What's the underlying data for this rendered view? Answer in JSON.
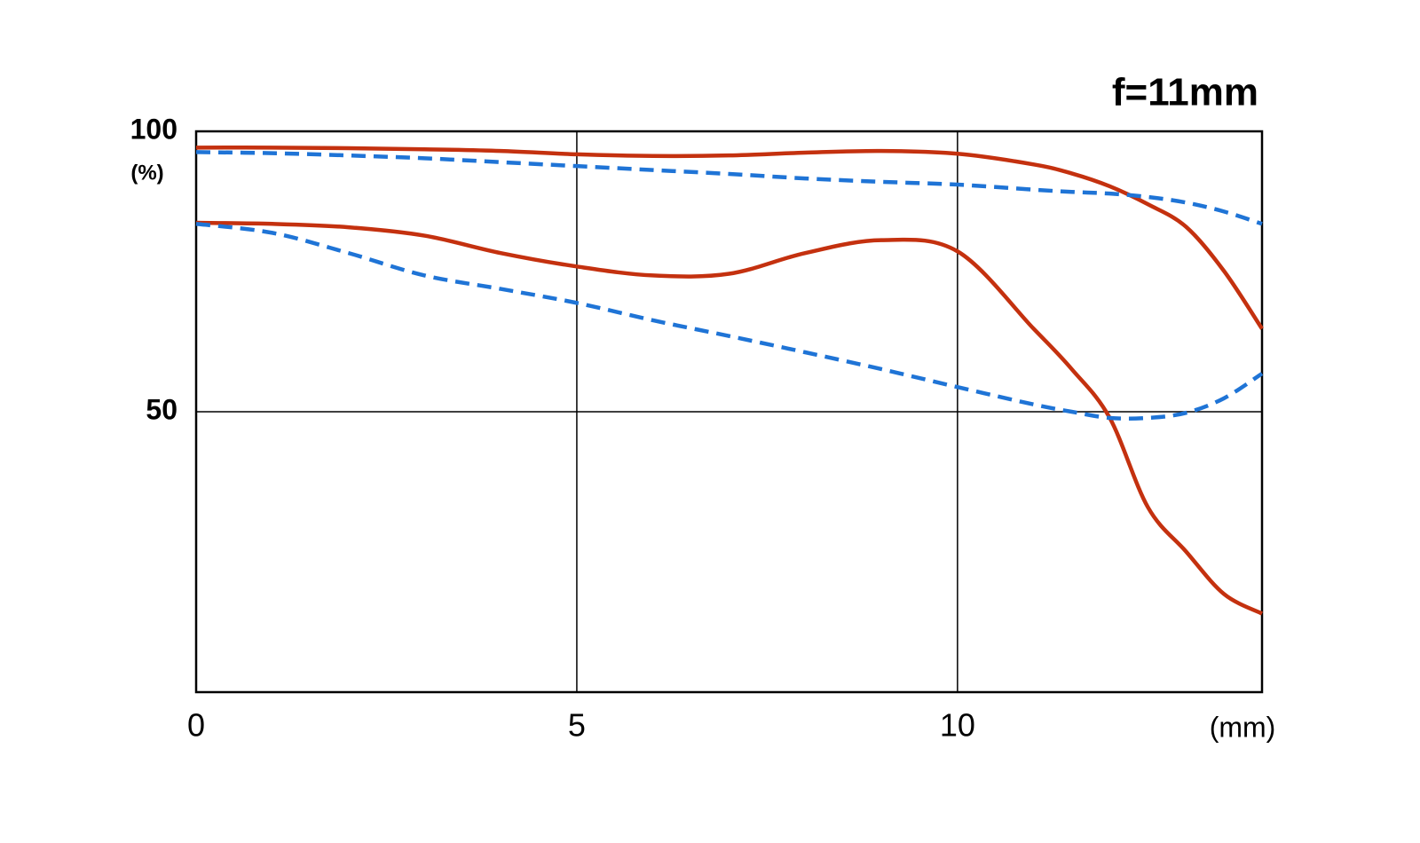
{
  "chart_data": {
    "type": "line",
    "title": "f=11mm",
    "y_unit": "(%)",
    "x_unit": "(mm)",
    "x": [
      0,
      1,
      2,
      3,
      4,
      5,
      6,
      7,
      8,
      9,
      10,
      11,
      11.5,
      12,
      12.5,
      13,
      13.5,
      14
    ],
    "series": [
      {
        "color": "#c4310f",
        "dash": false,
        "values": [
          97.1,
          97.1,
          97.0,
          96.8,
          96.5,
          95.9,
          95.6,
          95.7,
          96.2,
          96.5,
          96.0,
          94.1,
          92.5,
          90.2,
          87.0,
          83.0,
          75.1,
          64.8
        ]
      },
      {
        "color": "#1f74d6",
        "dash": true,
        "values": [
          96.3,
          96.1,
          95.7,
          95.2,
          94.5,
          93.8,
          93.1,
          92.4,
          91.6,
          91.0,
          90.5,
          89.6,
          89.2,
          88.9,
          88.3,
          87.3,
          85.7,
          83.5
        ]
      },
      {
        "color": "#c4310f",
        "dash": false,
        "values": [
          83.7,
          83.5,
          82.9,
          81.4,
          78.3,
          75.9,
          74.3,
          74.6,
          78.3,
          80.6,
          78.6,
          64.8,
          57.6,
          48.9,
          33.0,
          25.1,
          17.5,
          14.0
        ]
      },
      {
        "color": "#1f74d6",
        "dash": true,
        "values": [
          83.5,
          81.9,
          78.3,
          74.3,
          71.9,
          69.4,
          66.3,
          63.5,
          60.6,
          57.6,
          54.4,
          51.3,
          50.0,
          48.9,
          48.9,
          49.8,
          52.4,
          56.8
        ]
      }
    ],
    "xlim": [
      0,
      14
    ],
    "ylim": [
      0,
      100
    ],
    "xticks": [
      0,
      5,
      10
    ],
    "yticks": [
      50,
      100
    ],
    "grid": true
  }
}
